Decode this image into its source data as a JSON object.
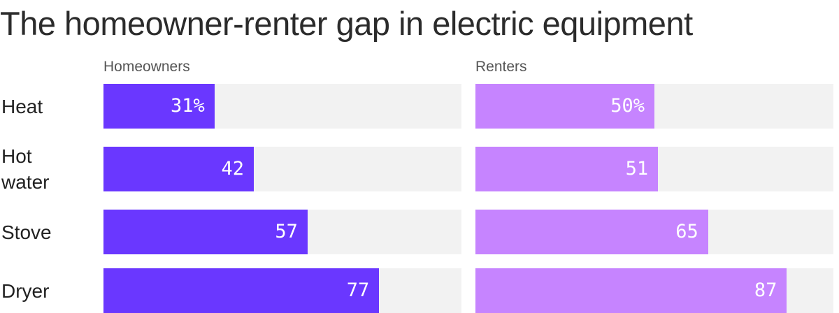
{
  "title": "The homeowner-renter gap in electric equipment",
  "chart_data": {
    "type": "bar",
    "orientation": "horizontal",
    "layout": "small-multiples",
    "title": "The homeowner-renter gap in electric equipment",
    "categories": [
      "Heat",
      "Hot water",
      "Stove",
      "Dryer"
    ],
    "category_labels": [
      "Heat",
      "Hot\nwater",
      "Stove",
      "Dryer"
    ],
    "xlim": [
      0,
      100
    ],
    "unit": "%",
    "grid": false,
    "legend": "none",
    "series": [
      {
        "name": "Homeowners",
        "values": [
          31,
          42,
          57,
          77
        ],
        "value_labels": [
          "31%",
          "42",
          "57",
          "77"
        ],
        "color": "#6a37ff"
      },
      {
        "name": "Renters",
        "values": [
          50,
          51,
          65,
          87
        ],
        "value_labels": [
          "50%",
          "51",
          "65",
          "87"
        ],
        "color": "#c684ff"
      }
    ],
    "track_color": "#f2f2f2"
  }
}
